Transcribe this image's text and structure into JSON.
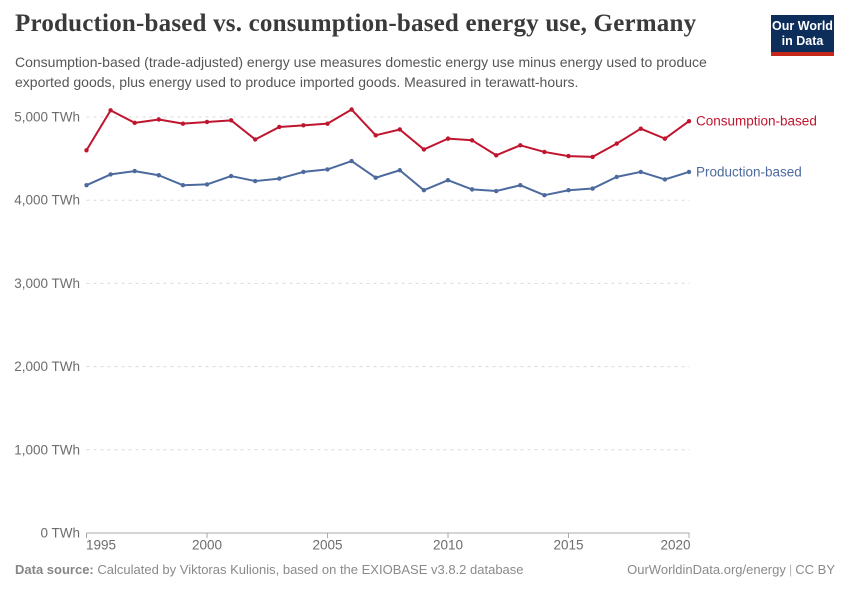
{
  "header": {
    "title": "Production-based vs. consumption-based energy use, Germany",
    "subtitle": "Consumption-based (trade-adjusted) energy use measures domestic energy use minus energy used to produce exported goods, plus energy used to produce imported goods. Measured in terawatt-hours.",
    "logo": {
      "line1": "Our World",
      "line2": "in Data"
    }
  },
  "footer": {
    "source_label": "Data source:",
    "source_text": "Calculated by Viktoras Kulionis, based on the EXIOBASE v3.8.2 database",
    "site": "OurWorldinData.org/energy",
    "separator": "|",
    "license": "CC BY"
  },
  "colors": {
    "consumption_line": "#C0152F",
    "production_line": "#4C6A9D",
    "logo_background": "#0d2e5a",
    "logo_stripe": "#c5271b",
    "gridline": "#d9d9d9",
    "axis": "#a9a9a9",
    "tick_text": "#6d6d6d"
  },
  "chart_data": {
    "type": "line",
    "title": "Production-based vs. consumption-based energy use, Germany",
    "unit": "TWh",
    "grid": "horizontal-dashed",
    "legend_position": "right-end-labels",
    "ylim": [
      0,
      5200
    ],
    "x": [
      1995,
      1996,
      1997,
      1998,
      1999,
      2000,
      2001,
      2002,
      2003,
      2004,
      2005,
      2006,
      2007,
      2008,
      2009,
      2010,
      2011,
      2012,
      2013,
      2014,
      2015,
      2016,
      2017,
      2018,
      2019,
      2020
    ],
    "series": [
      {
        "name": "Consumption-based",
        "color": "#C0152F",
        "values": [
          4600,
          5080,
          4930,
          4970,
          4920,
          4940,
          4960,
          4730,
          4880,
          4900,
          4920,
          5090,
          4780,
          4850,
          4610,
          4740,
          4720,
          4540,
          4660,
          4580,
          4530,
          4520,
          4680,
          4860,
          4740,
          4950
        ]
      },
      {
        "name": "Production-based",
        "color": "#4C6A9D",
        "values": [
          4180,
          4310,
          4350,
          4300,
          4180,
          4190,
          4290,
          4230,
          4260,
          4340,
          4370,
          4470,
          4270,
          4360,
          4120,
          4240,
          4130,
          4110,
          4180,
          4060,
          4120,
          4140,
          4280,
          4340,
          4250,
          4340
        ]
      }
    ],
    "yticks": [
      {
        "value": 0,
        "label": "0 TWh"
      },
      {
        "value": 1000,
        "label": "1,000 TWh"
      },
      {
        "value": 2000,
        "label": "2,000 TWh"
      },
      {
        "value": 3000,
        "label": "3,000 TWh"
      },
      {
        "value": 4000,
        "label": "4,000 TWh"
      },
      {
        "value": 5000,
        "label": "5,000 TWh"
      }
    ],
    "xticks": [
      {
        "value": 1995,
        "label": "1995"
      },
      {
        "value": 2000,
        "label": "2000"
      },
      {
        "value": 2005,
        "label": "2005"
      },
      {
        "value": 2010,
        "label": "2010"
      },
      {
        "value": 2015,
        "label": "2015"
      },
      {
        "value": 2020,
        "label": "2020"
      }
    ]
  }
}
